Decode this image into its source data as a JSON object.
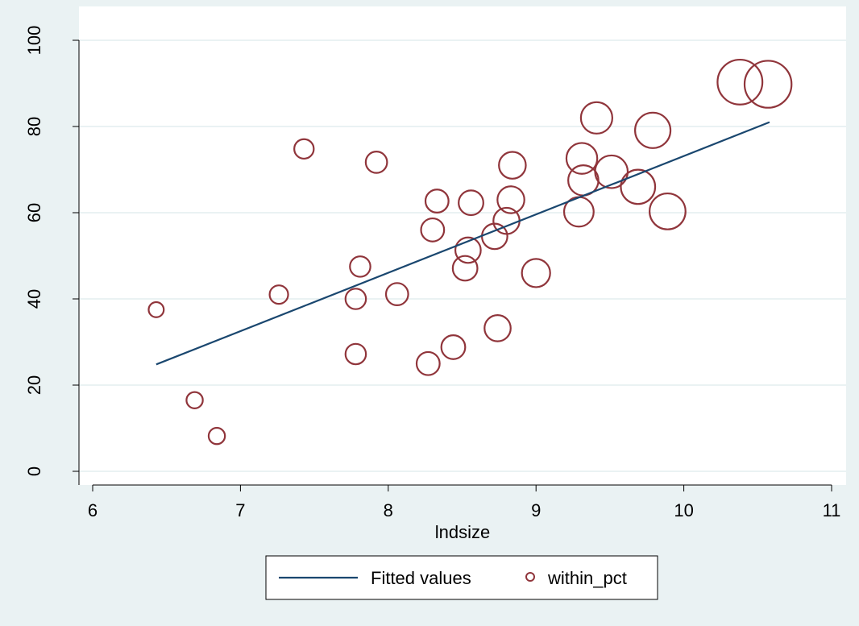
{
  "chart_data": {
    "type": "scatter",
    "title": "",
    "xlabel": "lndsize",
    "ylabel": "",
    "xlim": [
      6,
      11
    ],
    "ylim": [
      0,
      100
    ],
    "x_ticks": [
      6,
      7,
      8,
      9,
      10,
      11
    ],
    "y_ticks": [
      0,
      20,
      40,
      60,
      80,
      100
    ],
    "grid": "horizontal",
    "legend": {
      "position": "bottom",
      "entries": [
        "Fitted values",
        "within_pct"
      ]
    },
    "colors": {
      "background": "#eaf2f3",
      "plot_area": "#ffffff",
      "gridline": "#eaf2f3",
      "fitted_line": "#1a476f",
      "markers": "#90353b"
    },
    "series": [
      {
        "name": "Fitted values",
        "kind": "line",
        "points": [
          {
            "x": 6.43,
            "y": 24.8
          },
          {
            "x": 10.58,
            "y": 81.0
          }
        ]
      },
      {
        "name": "within_pct",
        "kind": "scatter",
        "marker": "hollow-circle",
        "size_weighted": true,
        "points": [
          {
            "x": 6.43,
            "y": 37.5,
            "weight": 0.6
          },
          {
            "x": 6.69,
            "y": 16.5,
            "weight": 0.7
          },
          {
            "x": 6.84,
            "y": 8.2,
            "weight": 0.7
          },
          {
            "x": 7.26,
            "y": 41.0,
            "weight": 0.9
          },
          {
            "x": 7.43,
            "y": 74.8,
            "weight": 1.0
          },
          {
            "x": 7.78,
            "y": 40.0,
            "weight": 1.1
          },
          {
            "x": 7.78,
            "y": 27.2,
            "weight": 1.1
          },
          {
            "x": 7.81,
            "y": 47.5,
            "weight": 1.1
          },
          {
            "x": 7.92,
            "y": 71.7,
            "weight": 1.2
          },
          {
            "x": 8.06,
            "y": 41.1,
            "weight": 1.3
          },
          {
            "x": 8.27,
            "y": 25.0,
            "weight": 1.4
          },
          {
            "x": 8.3,
            "y": 56.0,
            "weight": 1.4
          },
          {
            "x": 8.33,
            "y": 62.7,
            "weight": 1.4
          },
          {
            "x": 8.44,
            "y": 28.8,
            "weight": 1.5
          },
          {
            "x": 8.52,
            "y": 47.1,
            "weight": 1.6
          },
          {
            "x": 8.54,
            "y": 51.3,
            "weight": 1.7
          },
          {
            "x": 8.56,
            "y": 62.3,
            "weight": 1.6
          },
          {
            "x": 8.72,
            "y": 54.5,
            "weight": 1.7
          },
          {
            "x": 8.74,
            "y": 33.2,
            "weight": 1.8
          },
          {
            "x": 8.8,
            "y": 58.1,
            "weight": 1.8
          },
          {
            "x": 8.83,
            "y": 63.0,
            "weight": 1.9
          },
          {
            "x": 8.84,
            "y": 71.0,
            "weight": 1.9
          },
          {
            "x": 9.0,
            "y": 46.0,
            "weight": 2.1
          },
          {
            "x": 9.29,
            "y": 60.2,
            "weight": 2.3
          },
          {
            "x": 9.31,
            "y": 72.6,
            "weight": 2.5
          },
          {
            "x": 9.32,
            "y": 67.5,
            "weight": 2.4
          },
          {
            "x": 9.41,
            "y": 82.0,
            "weight": 2.6
          },
          {
            "x": 9.51,
            "y": 69.5,
            "weight": 2.8
          },
          {
            "x": 9.69,
            "y": 66.0,
            "weight": 3.1
          },
          {
            "x": 9.79,
            "y": 79.1,
            "weight": 3.3
          },
          {
            "x": 9.89,
            "y": 60.3,
            "weight": 3.4
          },
          {
            "x": 10.38,
            "y": 90.3,
            "weight": 5.3
          },
          {
            "x": 10.57,
            "y": 89.8,
            "weight": 5.8
          }
        ]
      }
    ]
  }
}
